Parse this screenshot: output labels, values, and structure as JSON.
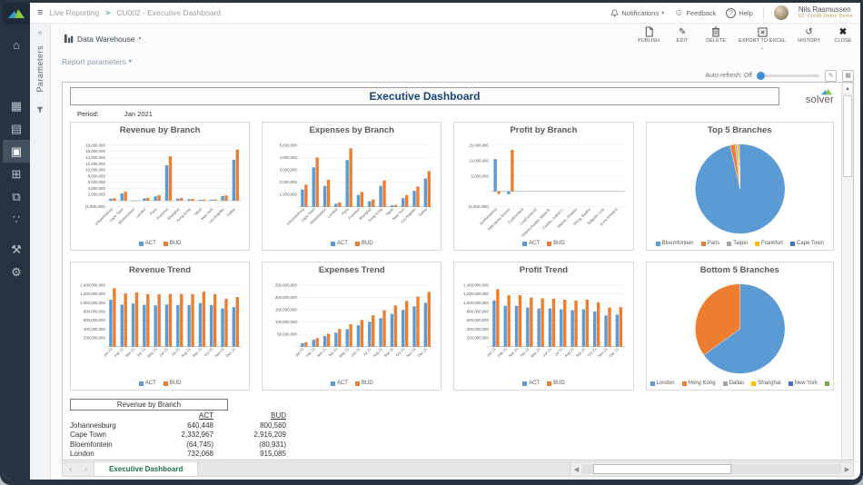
{
  "topbar": {
    "breadcrumb": {
      "section": "Live Reporting",
      "separator": ">",
      "page": "CU002 - Executive Dashboard"
    },
    "notifications_label": "Notifications",
    "feedback_label": "Feedback",
    "help_label": "Help",
    "user": {
      "name": "Nils Rasmussen",
      "org": "02. Credit Union Demo"
    }
  },
  "toolbar": {
    "datasource_label": "Data Warehouse",
    "actions": [
      {
        "id": "publish",
        "label": "PUBLISH"
      },
      {
        "id": "edit",
        "label": "EDIT"
      },
      {
        "id": "delete",
        "label": "DELETE"
      },
      {
        "id": "export",
        "label": "EXPORT TO EXCEL"
      },
      {
        "id": "history",
        "label": "HISTORY"
      },
      {
        "id": "close",
        "label": "CLOSE"
      }
    ]
  },
  "sidebar": {
    "items": [
      "home",
      "dashboards",
      "tasks",
      "reporting",
      "budgeting",
      "documents",
      "collaboration",
      "tools",
      "settings"
    ]
  },
  "params_panel": {
    "label": "Parameters"
  },
  "report_bar": {
    "parameters_label": "Report parameters",
    "auto_refresh_label": "Auto-refresh: Off"
  },
  "report": {
    "title": "Executive Dashboard",
    "period_label": "Period:",
    "period_value": "Jan 2021",
    "brand": "solver"
  },
  "chart_data": [
    {
      "type": "bar",
      "title": "Revenue by Branch",
      "categories": [
        "Johannesburg",
        "Cape Town",
        "Bloemfontein",
        "London",
        "Paris",
        "Frankfurt",
        "Shanghai",
        "Hong Kong",
        "Taipei",
        "New York",
        "Los Angeles",
        "Dallas"
      ],
      "series": [
        {
          "name": "ACT",
          "color": "#5b9bd5",
          "values": [
            640448,
            2332967,
            -64745,
            732068,
            1400000,
            11500000,
            700000,
            450000,
            300000,
            350000,
            1500000,
            13300000
          ]
        },
        {
          "name": "BUD",
          "color": "#ed7d31",
          "values": [
            800560,
            2916209,
            -80931,
            915085,
            1750000,
            14400000,
            850000,
            550000,
            350000,
            400000,
            1700000,
            16600000
          ]
        }
      ],
      "ymin": -2000000,
      "ymax": 18000000,
      "ystep": 2000000,
      "grid": true,
      "legend_position": "bottom"
    },
    {
      "type": "bar",
      "title": "Expenses by Branch",
      "categories": [
        "Johannesburg",
        "Cape Town",
        "Bloemfontein",
        "London",
        "Paris",
        "Frankfurt",
        "Shanghai",
        "Hong Kong",
        "Taipei",
        "New York",
        "Los Angeles",
        "Dallas"
      ],
      "series": [
        {
          "name": "ACT",
          "color": "#5b9bd5",
          "values": [
            1400000,
            3200000,
            1700000,
            250000,
            3800000,
            950000,
            450000,
            1700000,
            120000,
            700000,
            1300000,
            2300000
          ]
        },
        {
          "name": "BUD",
          "color": "#ed7d31",
          "values": [
            1800000,
            4000000,
            2200000,
            350000,
            4750000,
            1200000,
            600000,
            2150000,
            150000,
            950000,
            1650000,
            2900000
          ]
        }
      ],
      "ymin": 0,
      "ymax": 5000000,
      "ystep": 1000000,
      "grid": true,
      "legend_position": "bottom"
    },
    {
      "type": "bar",
      "title": "Profit by Branch",
      "categories": [
        "NorthAmerica",
        "WaKeeney Branch",
        "CostCenter5",
        "CostCenter22",
        "Dhamochumbi, Maria B.",
        "Castillo, Isabel C.",
        "Wiener, Shalako",
        "Wong, Beatriz",
        "Salgado, Luis",
        "(Lina Amador)"
      ],
      "series": [
        {
          "name": "ACT",
          "color": "#5b9bd5",
          "values": [
            10500000,
            -900000,
            0,
            0,
            0,
            0,
            0,
            0,
            0,
            0
          ]
        },
        {
          "name": "BUD",
          "color": "#ed7d31",
          "values": [
            -800000,
            13500000,
            0,
            0,
            0,
            0,
            0,
            0,
            0,
            0
          ]
        }
      ],
      "ymin": -5000000,
      "ymax": 15000000,
      "ystep": 5000000,
      "grid": true,
      "legend_position": "bottom"
    },
    {
      "type": "pie",
      "title": "Top 5 Branches",
      "slices": [
        {
          "label": "Bloemfontein",
          "color": "#5b9bd5",
          "value": 96.4
        },
        {
          "label": "Paris",
          "color": "#ed7d31",
          "value": 1.8
        },
        {
          "label": "Taipei",
          "color": "#a5a5a5",
          "value": 0.7
        },
        {
          "label": "Frankfurt",
          "color": "#ffc000",
          "value": 0.7
        },
        {
          "label": "Cape Town",
          "color": "#4472c4",
          "value": 0.4
        }
      ],
      "legend_position": "bottom"
    },
    {
      "type": "bar",
      "title": "Revenue Trend",
      "categories": [
        "Jan 21",
        "Feb 21",
        "Mar 21",
        "Apr 21",
        "May 21",
        "Jun 21",
        "Jul 21",
        "Aug 21",
        "Sep 21",
        "Oct 21",
        "Nov 21",
        "Dec 21"
      ],
      "series": [
        {
          "name": "ACT",
          "color": "#5b9bd5",
          "values": [
            1070000000,
            960000000,
            980000000,
            955000000,
            940000000,
            960000000,
            950000000,
            950000000,
            990000000,
            950000000,
            870000000,
            900000000
          ]
        },
        {
          "name": "BUD",
          "color": "#ed7d31",
          "values": [
            1330000000,
            1210000000,
            1235000000,
            1195000000,
            1190000000,
            1200000000,
            1200000000,
            1195000000,
            1250000000,
            1195000000,
            1090000000,
            1130000000
          ]
        }
      ],
      "ymin": 0,
      "ymax": 1400000000,
      "ystep": 200000000,
      "grid": true,
      "legend_position": "bottom"
    },
    {
      "type": "bar",
      "title": "Expenses Trend",
      "categories": [
        "Jan 21",
        "Feb 21",
        "Mar 21",
        "Apr 21",
        "May 21",
        "Jun 21",
        "Jul 21",
        "Aug 21",
        "Sep 21",
        "Oct 21",
        "Nov 21",
        "Dec 21"
      ],
      "series": [
        {
          "name": "ACT",
          "color": "#5b9bd5",
          "values": [
            14000000,
            28000000,
            43000000,
            57000000,
            71000000,
            87000000,
            101000000,
            116000000,
            133000000,
            149000000,
            164000000,
            178000000
          ]
        },
        {
          "name": "BUD",
          "color": "#ed7d31",
          "values": [
            18000000,
            35000000,
            53000000,
            72000000,
            91000000,
            109000000,
            128000000,
            148000000,
            167000000,
            186000000,
            204000000,
            222000000
          ]
        }
      ],
      "ymin": 0,
      "ymax": 250000000,
      "ystep": 50000000,
      "grid": true,
      "legend_position": "bottom"
    },
    {
      "type": "bar",
      "title": "Profit Trend",
      "categories": [
        "Jan 21",
        "Feb 21",
        "Mar 21",
        "Apr 21",
        "May 21",
        "Jun 21",
        "Jul 21",
        "Aug 21",
        "Sep 21",
        "Oct 21",
        "Nov 21",
        "Dec 21"
      ],
      "series": [
        {
          "name": "ACT",
          "color": "#5b9bd5",
          "values": [
            1050000000,
            930000000,
            930000000,
            890000000,
            870000000,
            870000000,
            850000000,
            830000000,
            850000000,
            800000000,
            710000000,
            730000000
          ]
        },
        {
          "name": "BUD",
          "color": "#ed7d31",
          "values": [
            1310000000,
            1170000000,
            1170000000,
            1120000000,
            1100000000,
            1090000000,
            1070000000,
            1050000000,
            1070000000,
            1010000000,
            890000000,
            900000000
          ]
        }
      ],
      "ymin": 0,
      "ymax": 1400000000,
      "ystep": 200000000,
      "grid": true,
      "legend_position": "bottom"
    },
    {
      "type": "pie",
      "title": "Bottom 5 Branches",
      "slices": [
        {
          "label": "London",
          "color": "#5b9bd5",
          "value": 65
        },
        {
          "label": "Hong Kong",
          "color": "#ed7d31",
          "value": 35
        },
        {
          "label": "Dallas",
          "color": "#a5a5a5",
          "value": 0
        },
        {
          "label": "Shanghai",
          "color": "#ffc000",
          "value": 0
        },
        {
          "label": "New York",
          "color": "#4472c4",
          "value": 0
        },
        {
          "label": "",
          "color": "#70ad47",
          "value": 0
        }
      ],
      "legend_position": "bottom"
    }
  ],
  "table": {
    "title": "Revenue by Branch",
    "columns": [
      "ACT",
      "BUD"
    ],
    "rows": [
      {
        "name": "Johannesburg",
        "act": "640,448",
        "bud": "800,560"
      },
      {
        "name": "Cape Town",
        "act": "2,332,967",
        "bud": "2,916,209"
      },
      {
        "name": "Bloemfontein",
        "act": "(64,745)",
        "bud": "(80,931)"
      },
      {
        "name": "London",
        "act": "732,068",
        "bud": "915,085"
      }
    ]
  },
  "tabs": {
    "active": "Executive Dashboard"
  },
  "colors": {
    "act": "#5b9bd5",
    "bud": "#ed7d31",
    "accent_teal": "#2fae9e",
    "excel_green": "#1e7145",
    "title_blue": "#17457a",
    "sidebar_bg": "#273341"
  }
}
